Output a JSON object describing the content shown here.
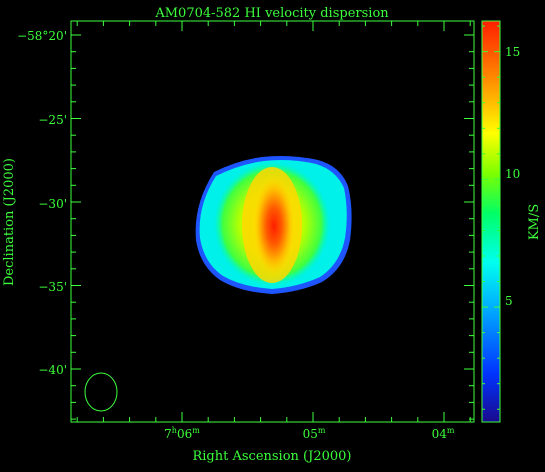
{
  "title": "AM0704-582   HI velocity dispersion",
  "x_axis": {
    "label": "Right Ascension (J2000)",
    "ticks": [
      {
        "main": "7",
        "sup1": "h",
        "mid": "06",
        "sup2": "m"
      },
      {
        "main": "05",
        "sup1": "m",
        "mid": "",
        "sup2": ""
      },
      {
        "main": "04",
        "sup1": "m",
        "mid": "",
        "sup2": ""
      }
    ]
  },
  "y_axis": {
    "label": "Declination (J2000)",
    "ticks": [
      "−58°20'",
      "−25'",
      "−30'",
      "−35'",
      "−40'"
    ]
  },
  "colorbar": {
    "label": "KM/S",
    "ticks": [
      "15",
      "10",
      "5"
    ],
    "range": [
      0.5,
      16.2
    ]
  },
  "colors": {
    "axis": "#3cff3c",
    "background": "#000000",
    "colormap": [
      "#1a0a8c",
      "#0033ff",
      "#00aaff",
      "#00ffee",
      "#00ff66",
      "#7dff00",
      "#ffff00",
      "#ff8800",
      "#ff1e00"
    ]
  },
  "beam_icon": "ellipse-beam-icon"
}
